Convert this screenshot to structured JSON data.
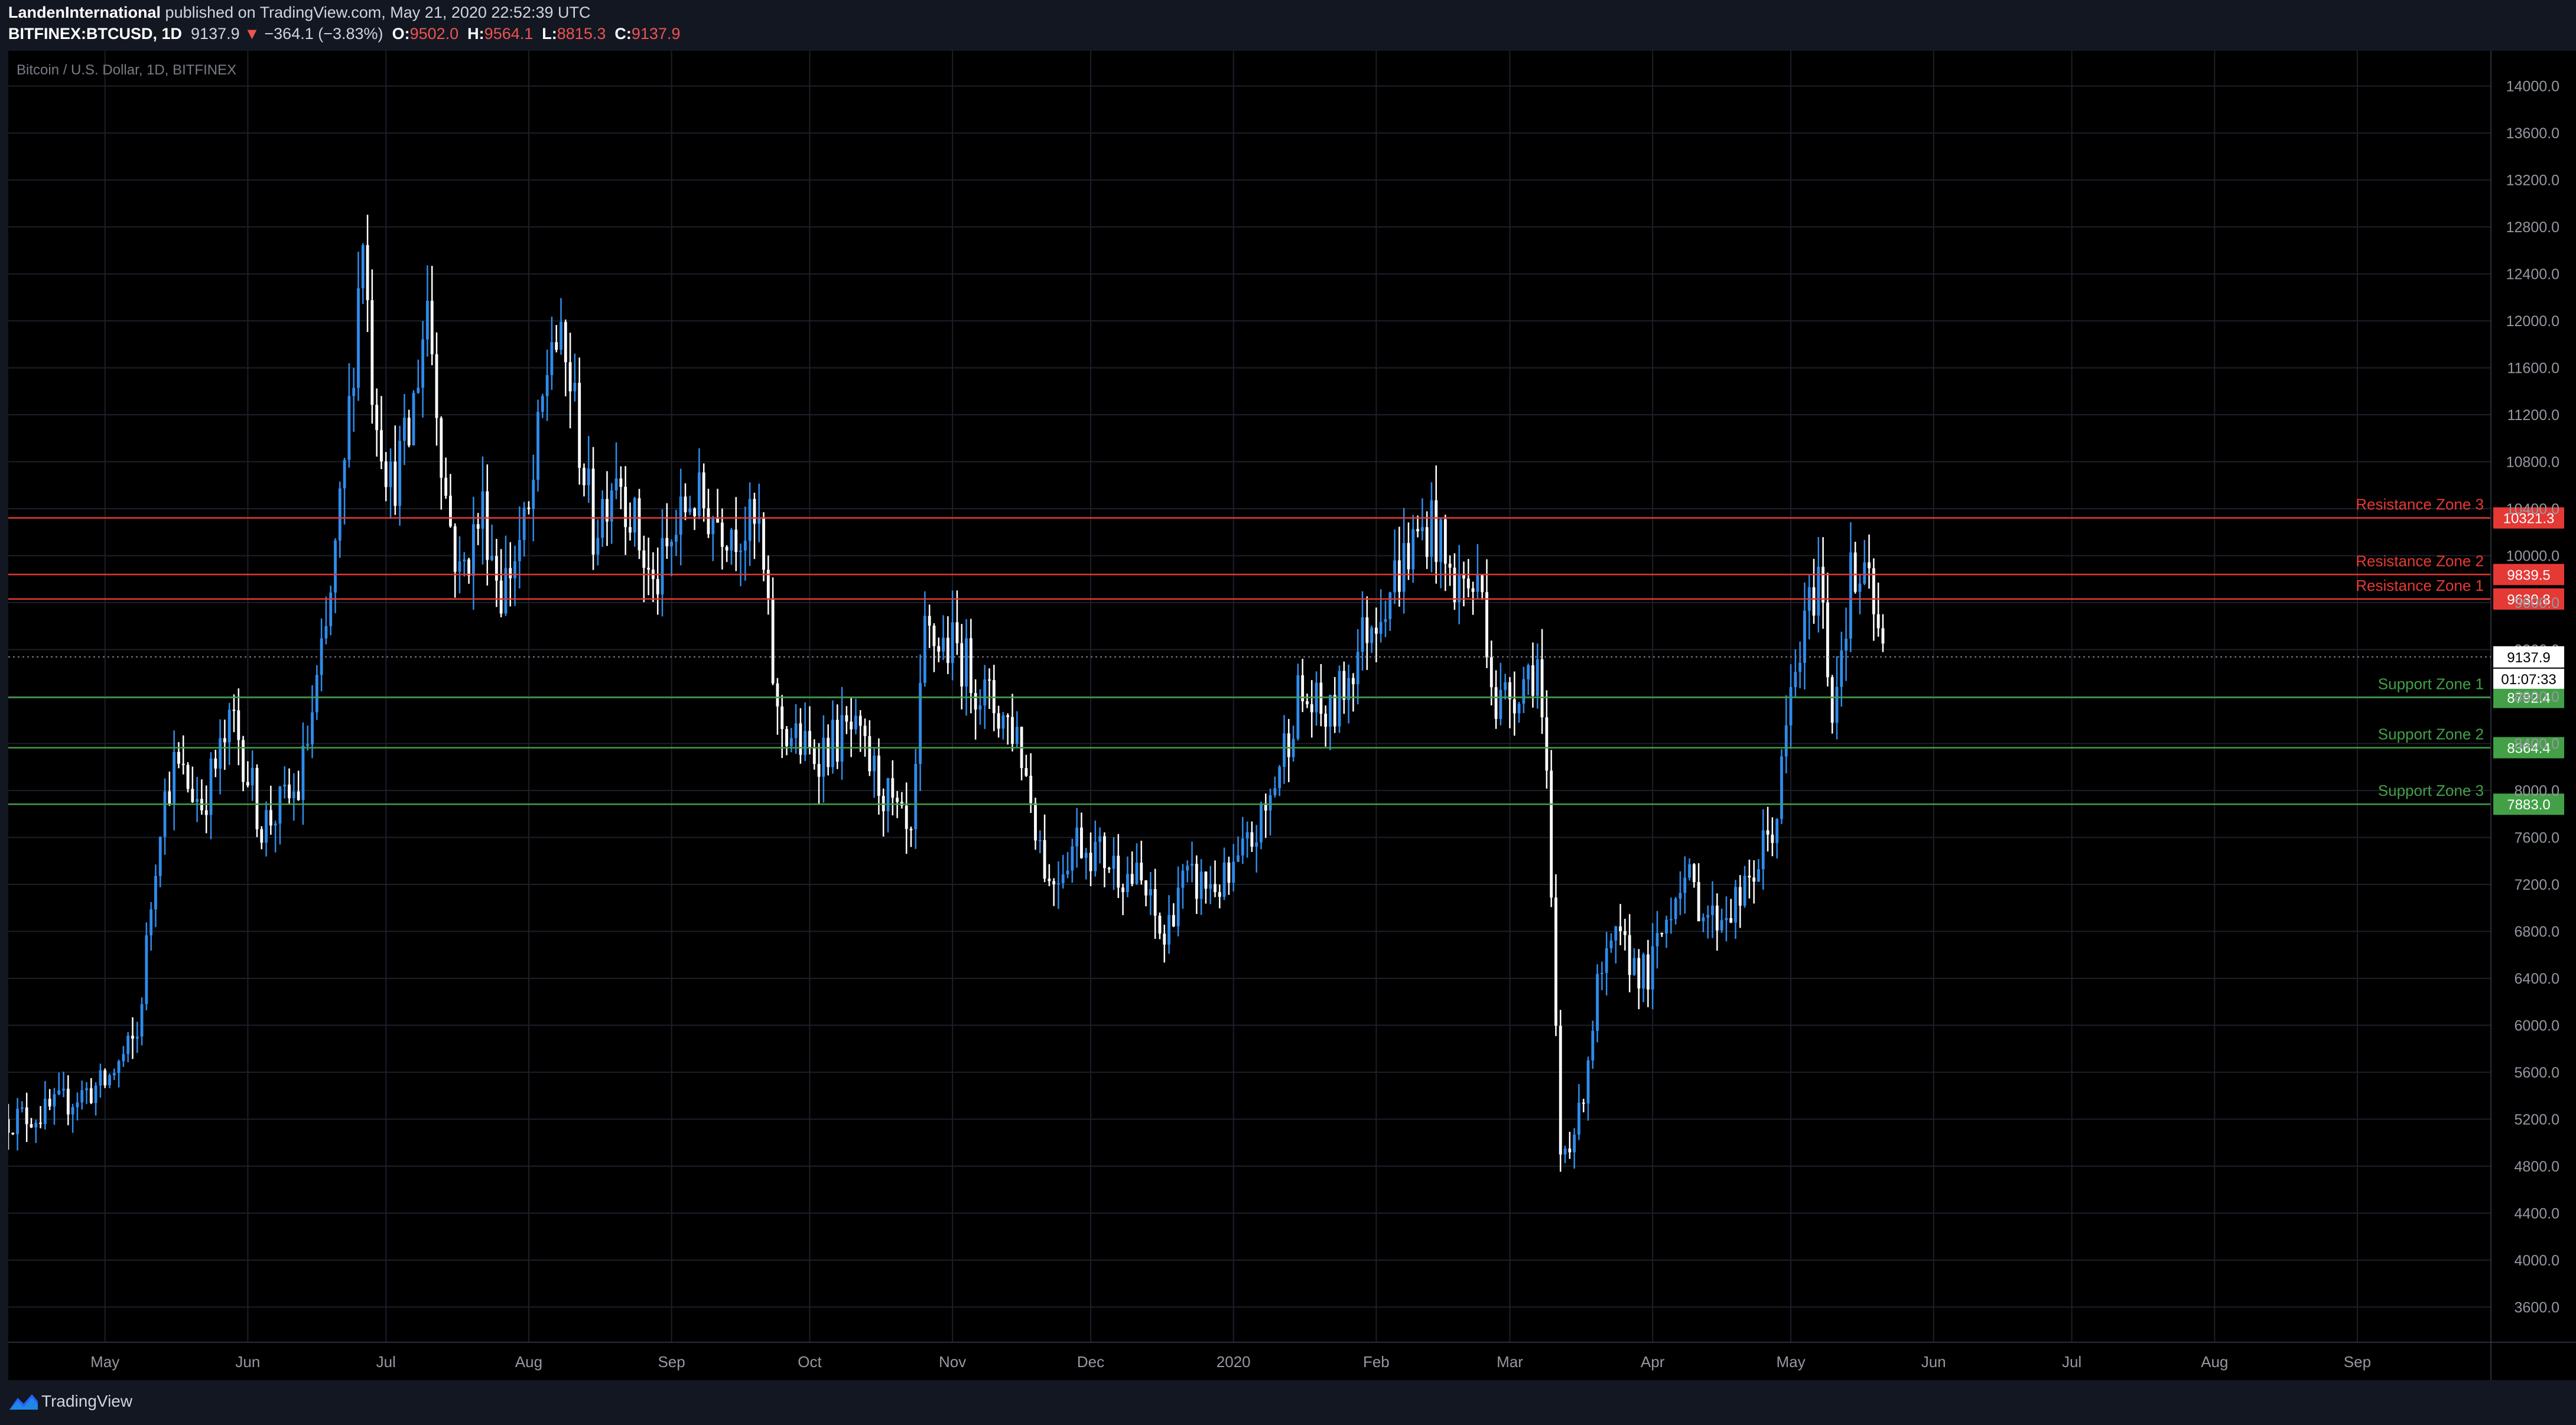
{
  "header": {
    "author": "LandenInternational",
    "published_text": "published on TradingView.com, May 21, 2020 22:52:39 UTC",
    "symbol": "BITFINEX:BTCUSD, 1D",
    "last": "9137.9",
    "change": "−364.1 (−3.83%)",
    "o_label": "O:",
    "o_value": "9502.0",
    "h_label": "H:",
    "h_value": "9564.1",
    "l_label": "L:",
    "l_value": "8815.3",
    "c_label": "C:",
    "c_value": "9137.9"
  },
  "footer": {
    "brand": "TradingView"
  },
  "colors": {
    "background": "#000000",
    "grid": "#1c1f2a",
    "candle": "#2f8ceb",
    "candle_down": "#ffffff",
    "resistance": "#e53935",
    "support": "#43a047",
    "axis_text": "#9598a1"
  },
  "chart_data": {
    "type": "candlestick",
    "title": "Bitcoin / U.S. Dollar, 1D, BITFINEX",
    "y_ticks": [
      3600.0,
      4000.0,
      4400.0,
      4800.0,
      5200.0,
      5600.0,
      6000.0,
      6400.0,
      6800.0,
      7200.0,
      7600.0,
      8000.0,
      8400.0,
      8800.0,
      9200.0,
      9600.0,
      10000.0,
      10400.0,
      10800.0,
      11200.0,
      11600.0,
      12000.0,
      12400.0,
      12800.0,
      13200.0,
      13600.0,
      14000.0
    ],
    "x_ticks": [
      "May",
      "Jun",
      "Jul",
      "Aug",
      "Sep",
      "Oct",
      "Nov",
      "Dec",
      "2020",
      "Feb",
      "Mar",
      "Apr",
      "May",
      "Jun",
      "Jul",
      "Aug",
      "Sep"
    ],
    "x_tick_dates": [
      "2019-05-01",
      "2019-06-01",
      "2019-07-01",
      "2019-08-01",
      "2019-09-01",
      "2019-10-01",
      "2019-11-01",
      "2019-12-01",
      "2020-01-01",
      "2020-02-01",
      "2020-03-01",
      "2020-04-01",
      "2020-05-01",
      "2020-06-01",
      "2020-07-01",
      "2020-08-01",
      "2020-09-01"
    ],
    "x_range": [
      "2019-04-10",
      "2020-09-30"
    ],
    "ylim": [
      3300,
      14300
    ],
    "last_price": 9137.9,
    "countdown": "01:07:33",
    "levels": [
      {
        "name": "Resistance Zone 3",
        "value": 10321.3,
        "kind": "resistance"
      },
      {
        "name": "Resistance Zone 2",
        "value": 9839.5,
        "kind": "resistance"
      },
      {
        "name": "Resistance Zone 1",
        "value": 9630.8,
        "kind": "resistance"
      },
      {
        "name": "Support Zone 1",
        "value": 8792.4,
        "kind": "support"
      },
      {
        "name": "Support Zone 2",
        "value": 8364.4,
        "kind": "support"
      },
      {
        "name": "Support Zone 3",
        "value": 7883.0,
        "kind": "support"
      }
    ],
    "start_date": "2019-04-10",
    "anchors": [
      [
        "2019-04-10",
        5200
      ],
      [
        "2019-04-18",
        5250
      ],
      [
        "2019-04-25",
        5400
      ],
      [
        "2019-05-01",
        5500
      ],
      [
        "2019-05-08",
        5900
      ],
      [
        "2019-05-13",
        7800
      ],
      [
        "2019-05-16",
        8200
      ],
      [
        "2019-05-22",
        7900
      ],
      [
        "2019-05-29",
        8600
      ],
      [
        "2019-06-04",
        7700
      ],
      [
        "2019-06-12",
        8000
      ],
      [
        "2019-06-18",
        9300
      ],
      [
        "2019-06-22",
        10700
      ],
      [
        "2019-06-26",
        12800
      ],
      [
        "2019-06-28",
        11500
      ],
      [
        "2019-07-02",
        10600
      ],
      [
        "2019-07-06",
        11000
      ],
      [
        "2019-07-10",
        12200
      ],
      [
        "2019-07-14",
        10500
      ],
      [
        "2019-07-17",
        9800
      ],
      [
        "2019-07-22",
        10400
      ],
      [
        "2019-07-26",
        9700
      ],
      [
        "2019-08-01",
        10300
      ],
      [
        "2019-08-06",
        11900
      ],
      [
        "2019-08-10",
        11500
      ],
      [
        "2019-08-15",
        10200
      ],
      [
        "2019-08-20",
        10800
      ],
      [
        "2019-08-28",
        9700
      ],
      [
        "2019-09-05",
        10500
      ],
      [
        "2019-09-12",
        10300
      ],
      [
        "2019-09-20",
        10200
      ],
      [
        "2019-09-24",
        8600
      ],
      [
        "2019-10-01",
        8300
      ],
      [
        "2019-10-10",
        8500
      ],
      [
        "2019-10-17",
        8000
      ],
      [
        "2019-10-23",
        7500
      ],
      [
        "2019-10-26",
        9300
      ],
      [
        "2019-11-02",
        9200
      ],
      [
        "2019-11-08",
        8800
      ],
      [
        "2019-11-15",
        8500
      ],
      [
        "2019-11-22",
        7200
      ],
      [
        "2019-11-28",
        7600
      ],
      [
        "2019-12-05",
        7400
      ],
      [
        "2019-12-12",
        7200
      ],
      [
        "2019-12-17",
        6700
      ],
      [
        "2019-12-20",
        7200
      ],
      [
        "2019-12-31",
        7200
      ],
      [
        "2020-01-08",
        7800
      ],
      [
        "2020-01-15",
        8800
      ],
      [
        "2020-01-22",
        8600
      ],
      [
        "2020-01-30",
        9400
      ],
      [
        "2020-02-09",
        10100
      ],
      [
        "2020-02-13",
        10300
      ],
      [
        "2020-02-17",
        9800
      ],
      [
        "2020-02-24",
        9700
      ],
      [
        "2020-02-27",
        8700
      ],
      [
        "2020-03-07",
        9100
      ],
      [
        "2020-03-09",
        8000
      ],
      [
        "2020-03-12",
        4900
      ],
      [
        "2020-03-16",
        5200
      ],
      [
        "2020-03-20",
        6300
      ],
      [
        "2020-03-24",
        6700
      ],
      [
        "2020-03-31",
        6400
      ],
      [
        "2020-04-07",
        7300
      ],
      [
        "2020-04-14",
        6900
      ],
      [
        "2020-04-21",
        7100
      ],
      [
        "2020-04-28",
        7800
      ],
      [
        "2020-05-01",
        8800
      ],
      [
        "2020-05-07",
        9900
      ],
      [
        "2020-05-10",
        8700
      ],
      [
        "2020-05-14",
        9800
      ],
      [
        "2020-05-18",
        9700
      ],
      [
        "2020-05-21",
        9138
      ]
    ]
  }
}
